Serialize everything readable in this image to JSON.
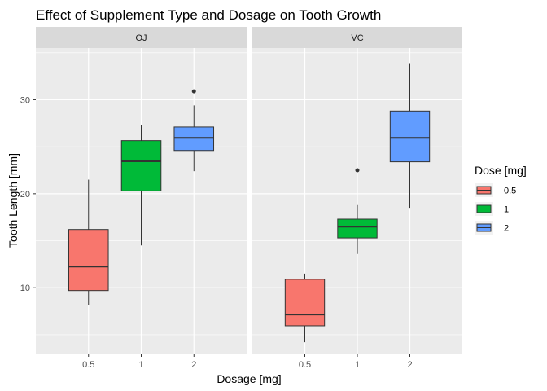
{
  "chart_data": {
    "type": "boxplot",
    "title": "Effect of Supplement Type and Dosage on Tooth Growth",
    "xlabel": "Dosage [mg]",
    "ylabel": "Tooth Length [mm]",
    "ylim": [
      3,
      35.5
    ],
    "yticks": [
      10,
      20,
      30
    ],
    "categories": [
      "0.5",
      "1",
      "2"
    ],
    "grid": true,
    "legend": {
      "title": "Dose [mg]",
      "position": "right",
      "entries": [
        {
          "label": "0.5",
          "color": "#F8766D"
        },
        {
          "label": "1",
          "color": "#00BA38"
        },
        {
          "label": "2",
          "color": "#619CFF"
        }
      ]
    },
    "panels": [
      {
        "label": "OJ",
        "boxes": [
          {
            "x": "0.5",
            "min": 8.2,
            "q1": 9.7,
            "median": 12.25,
            "q3": 16.2,
            "max": 21.5,
            "outliers": []
          },
          {
            "x": "1",
            "min": 14.5,
            "q1": 20.3,
            "median": 23.45,
            "q3": 25.65,
            "max": 27.3,
            "outliers": []
          },
          {
            "x": "2",
            "min": 22.4,
            "q1": 24.6,
            "median": 25.95,
            "q3": 27.1,
            "max": 29.4,
            "outliers": [
              30.9
            ]
          }
        ]
      },
      {
        "label": "VC",
        "boxes": [
          {
            "x": "0.5",
            "min": 4.2,
            "q1": 5.95,
            "median": 7.15,
            "q3": 10.9,
            "max": 11.5,
            "outliers": []
          },
          {
            "x": "1",
            "min": 13.6,
            "q1": 15.3,
            "median": 16.5,
            "q3": 17.3,
            "max": 18.8,
            "outliers": [
              22.5
            ]
          },
          {
            "x": "2",
            "min": 18.5,
            "q1": 23.4,
            "median": 25.95,
            "q3": 28.8,
            "max": 33.9,
            "outliers": []
          }
        ]
      }
    ]
  }
}
